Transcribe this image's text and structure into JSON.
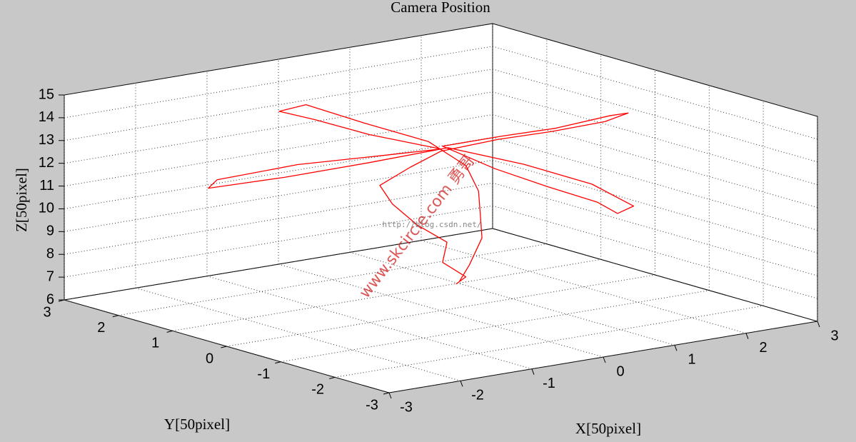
{
  "chart_data": {
    "type": "line3d",
    "title": "Camera Position",
    "xlabel": "X[50pixel]",
    "ylabel": "Y[50pixel]",
    "zlabel": "Z[50pixel]",
    "color": "#ff0000",
    "grid": true,
    "xlim": [
      -3,
      3
    ],
    "ylim": [
      -3,
      3
    ],
    "zlim": [
      6,
      15
    ],
    "xticks": [
      -3,
      -2,
      -1,
      0,
      1,
      2,
      3
    ],
    "yticks": [
      -3,
      -2,
      -1,
      0,
      1,
      2,
      3
    ],
    "zticks": [
      6,
      7,
      8,
      9,
      10,
      11,
      12,
      13,
      14,
      15
    ],
    "x": [
      0.25,
      0.35,
      0.1,
      0.2,
      -0.1,
      -0.3,
      -0.4,
      -0.2,
      0.0,
      0.8,
      1.6,
      2.3,
      2.7,
      2.6,
      1.8,
      1.0,
      0.1,
      0.15,
      0.2,
      0.3,
      0.2,
      0.5,
      0.6,
      0.4,
      0.1,
      -0.8,
      -1.7,
      -2.5,
      -2.3,
      -1.4,
      -0.5,
      0.0,
      -0.4,
      -0.7,
      -0.9,
      -0.6,
      -0.3,
      0.05,
      0.2,
      0.3,
      0.4,
      0.5,
      0.4,
      0.3
    ],
    "y": [
      0.05,
      0.0,
      0.1,
      0.15,
      0.3,
      0.5,
      0.6,
      0.3,
      0.0,
      0.0,
      0.05,
      0.0,
      0.1,
      0.3,
      0.25,
      0.2,
      0.1,
      -0.8,
      -1.7,
      -2.5,
      -3.0,
      -2.9,
      -2.0,
      -1.0,
      0.0,
      0.3,
      0.65,
      1.0,
      1.1,
      0.8,
      0.3,
      0.0,
      0.8,
      1.4,
      1.8,
      1.7,
      1.0,
      0.3,
      -0.2,
      -0.3,
      -0.2,
      -0.1,
      0.0,
      0.05
    ],
    "z": [
      7.0,
      7.3,
      8.0,
      8.8,
      9.6,
      10.5,
      11.3,
      12.2,
      13.0,
      13.1,
      13.0,
      13.1,
      13.2,
      13.0,
      12.9,
      13.0,
      13.1,
      12.7,
      12.5,
      12.3,
      12.2,
      12.3,
      12.6,
      12.9,
      13.1,
      12.7,
      12.3,
      12.0,
      12.2,
      12.6,
      12.9,
      13.1,
      13.4,
      13.8,
      14.0,
      14.2,
      13.7,
      13.2,
      12.4,
      11.3,
      10.2,
      9.0,
      7.8,
      7.1
    ],
    "watermarks": [
      "www.skcircle.com 勇哥",
      "http://blog.csdn.net/"
    ]
  }
}
